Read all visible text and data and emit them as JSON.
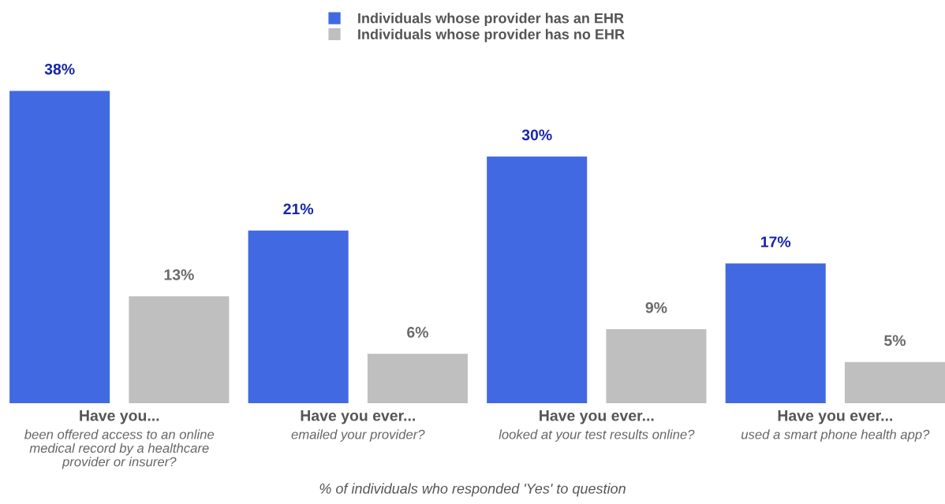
{
  "chart_data": {
    "type": "bar",
    "categories": [
      "Have you...\nbeen offered access to an online\nmedical record by a healthcare\nprovider or insurer?",
      "Have you ever...\nemailed your provider?",
      "Have you ever...\nlooked at your test results online?",
      "Have you ever...\nused a smart phone health app?"
    ],
    "series": [
      {
        "name": "Individuals whose provider has an EHR",
        "color": "#4169e1",
        "values": [
          38,
          21,
          30,
          17
        ],
        "value_labels": [
          "38%",
          "21%",
          "30%",
          "17%"
        ]
      },
      {
        "name": "Individuals whose provider has no EHR",
        "color": "#bfbfbf",
        "values": [
          13,
          6,
          9,
          5
        ],
        "value_labels": [
          "13%",
          "6%",
          "9%",
          "5%"
        ]
      }
    ],
    "xlabel": "% of individuals who responded 'Yes' to question",
    "legend": "top",
    "grid": false
  }
}
